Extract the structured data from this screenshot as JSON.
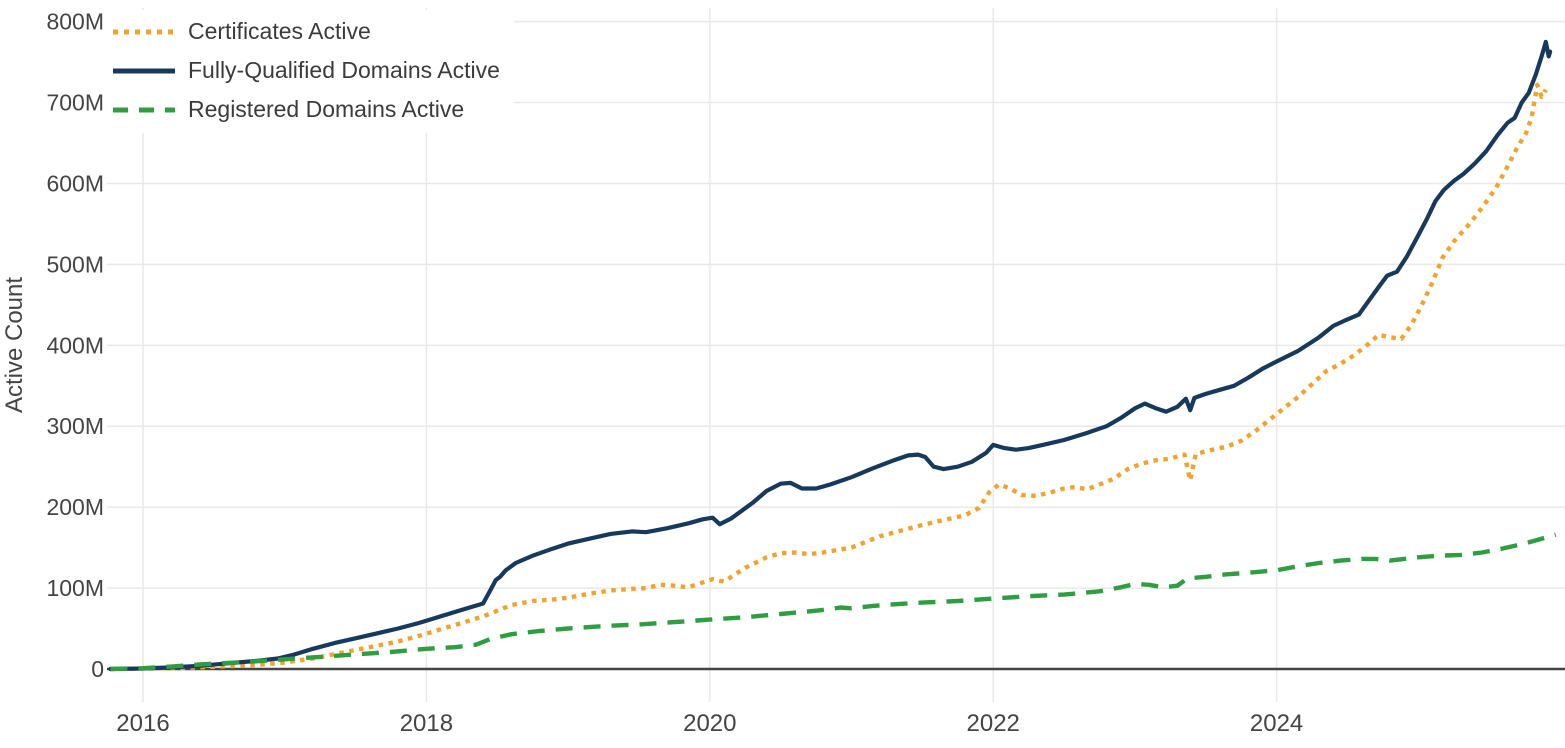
{
  "chart_data": {
    "type": "line",
    "title": "",
    "xlabel": "",
    "ylabel": "Active Count",
    "units": "millions",
    "xlim": [
      2015.77,
      2026.05
    ],
    "ylim": [
      0,
      800
    ],
    "grid": true,
    "legend_position": "top-left",
    "background_color": "#ffffff",
    "gridline_color": "#e9e9e9",
    "axis_line_color": "#444444",
    "tick_label_color": "#444444",
    "yticks": [
      {
        "v": 0,
        "label": "0"
      },
      {
        "v": 100,
        "label": "100M"
      },
      {
        "v": 200,
        "label": "200M"
      },
      {
        "v": 300,
        "label": "300M"
      },
      {
        "v": 400,
        "label": "400M"
      },
      {
        "v": 500,
        "label": "500M"
      },
      {
        "v": 600,
        "label": "600M"
      },
      {
        "v": 700,
        "label": "700M"
      },
      {
        "v": 800,
        "label": "800M"
      }
    ],
    "xticks": [
      {
        "v": 2016,
        "label": "2016"
      },
      {
        "v": 2018,
        "label": "2018"
      },
      {
        "v": 2020,
        "label": "2020"
      },
      {
        "v": 2022,
        "label": "2022"
      },
      {
        "v": 2024,
        "label": "2024"
      }
    ],
    "series": [
      {
        "name": "Certificates Active",
        "color": "#F0A42E",
        "line_style": "dot",
        "points": [
          [
            2015.77,
            0
          ],
          [
            2016.0,
            0.5
          ],
          [
            2016.2,
            1
          ],
          [
            2016.4,
            2
          ],
          [
            2016.6,
            3.5
          ],
          [
            2016.8,
            5
          ],
          [
            2017.0,
            8
          ],
          [
            2017.2,
            13
          ],
          [
            2017.4,
            20
          ],
          [
            2017.6,
            27
          ],
          [
            2017.8,
            34
          ],
          [
            2017.95,
            41
          ],
          [
            2018.1,
            49
          ],
          [
            2018.25,
            57
          ],
          [
            2018.4,
            65
          ],
          [
            2018.5,
            72
          ],
          [
            2018.6,
            79
          ],
          [
            2018.75,
            84
          ],
          [
            2018.9,
            86
          ],
          [
            2019.0,
            88
          ],
          [
            2019.15,
            93
          ],
          [
            2019.3,
            97
          ],
          [
            2019.45,
            99
          ],
          [
            2019.55,
            100
          ],
          [
            2019.65,
            104
          ],
          [
            2019.75,
            103
          ],
          [
            2019.85,
            101
          ],
          [
            2019.95,
            107
          ],
          [
            2020.02,
            111
          ],
          [
            2020.1,
            108
          ],
          [
            2020.25,
            125
          ],
          [
            2020.4,
            138
          ],
          [
            2020.5,
            143
          ],
          [
            2020.6,
            144
          ],
          [
            2020.7,
            142
          ],
          [
            2020.8,
            144
          ],
          [
            2020.9,
            147
          ],
          [
            2021.0,
            150
          ],
          [
            2021.1,
            157
          ],
          [
            2021.2,
            164
          ],
          [
            2021.35,
            171
          ],
          [
            2021.5,
            178
          ],
          [
            2021.65,
            184
          ],
          [
            2021.8,
            190
          ],
          [
            2021.9,
            199
          ],
          [
            2021.97,
            218
          ],
          [
            2022.04,
            228
          ],
          [
            2022.12,
            223
          ],
          [
            2022.2,
            215
          ],
          [
            2022.3,
            214
          ],
          [
            2022.4,
            218
          ],
          [
            2022.5,
            223
          ],
          [
            2022.58,
            225
          ],
          [
            2022.66,
            222
          ],
          [
            2022.75,
            228
          ],
          [
            2022.85,
            235
          ],
          [
            2022.95,
            247
          ],
          [
            2023.05,
            254
          ],
          [
            2023.15,
            258
          ],
          [
            2023.25,
            260
          ],
          [
            2023.35,
            265
          ],
          [
            2023.39,
            233
          ],
          [
            2023.43,
            266
          ],
          [
            2023.55,
            271
          ],
          [
            2023.65,
            275
          ],
          [
            2023.75,
            282
          ],
          [
            2023.85,
            294
          ],
          [
            2023.95,
            308
          ],
          [
            2024.05,
            322
          ],
          [
            2024.15,
            336
          ],
          [
            2024.25,
            352
          ],
          [
            2024.35,
            368
          ],
          [
            2024.45,
            377
          ],
          [
            2024.55,
            388
          ],
          [
            2024.65,
            402
          ],
          [
            2024.72,
            413
          ],
          [
            2024.8,
            410
          ],
          [
            2024.88,
            408
          ],
          [
            2024.95,
            425
          ],
          [
            2025.02,
            448
          ],
          [
            2025.1,
            478
          ],
          [
            2025.17,
            508
          ],
          [
            2025.25,
            528
          ],
          [
            2025.35,
            548
          ],
          [
            2025.45,
            570
          ],
          [
            2025.55,
            595
          ],
          [
            2025.62,
            618
          ],
          [
            2025.7,
            645
          ],
          [
            2025.76,
            662
          ],
          [
            2025.8,
            682
          ],
          [
            2025.84,
            722
          ],
          [
            2025.87,
            707
          ],
          [
            2025.9,
            716
          ]
        ]
      },
      {
        "name": "Fully-Qualified Domains Active",
        "color": "#16395D",
        "line_style": "solid",
        "points": [
          [
            2015.77,
            0
          ],
          [
            2016.0,
            0.6
          ],
          [
            2016.2,
            2
          ],
          [
            2016.4,
            4
          ],
          [
            2016.6,
            7
          ],
          [
            2016.8,
            10
          ],
          [
            2016.95,
            13
          ],
          [
            2017.05,
            17
          ],
          [
            2017.2,
            25
          ],
          [
            2017.35,
            32
          ],
          [
            2017.5,
            38
          ],
          [
            2017.65,
            44
          ],
          [
            2017.8,
            50
          ],
          [
            2017.95,
            57
          ],
          [
            2018.1,
            65
          ],
          [
            2018.25,
            73
          ],
          [
            2018.4,
            81
          ],
          [
            2018.45,
            97
          ],
          [
            2018.49,
            110
          ],
          [
            2018.52,
            114
          ],
          [
            2018.56,
            122
          ],
          [
            2018.63,
            131
          ],
          [
            2018.75,
            140
          ],
          [
            2018.88,
            148
          ],
          [
            2019.0,
            155
          ],
          [
            2019.15,
            161
          ],
          [
            2019.3,
            167
          ],
          [
            2019.45,
            170
          ],
          [
            2019.55,
            169
          ],
          [
            2019.7,
            174
          ],
          [
            2019.85,
            180
          ],
          [
            2019.95,
            185
          ],
          [
            2020.02,
            187
          ],
          [
            2020.07,
            179
          ],
          [
            2020.15,
            186
          ],
          [
            2020.3,
            205
          ],
          [
            2020.4,
            220
          ],
          [
            2020.5,
            229
          ],
          [
            2020.57,
            230
          ],
          [
            2020.65,
            223
          ],
          [
            2020.75,
            223
          ],
          [
            2020.85,
            228
          ],
          [
            2021.0,
            237
          ],
          [
            2021.15,
            248
          ],
          [
            2021.3,
            258
          ],
          [
            2021.4,
            264
          ],
          [
            2021.47,
            265
          ],
          [
            2021.52,
            262
          ],
          [
            2021.58,
            250
          ],
          [
            2021.65,
            247
          ],
          [
            2021.75,
            250
          ],
          [
            2021.85,
            256
          ],
          [
            2021.95,
            267
          ],
          [
            2022.0,
            277
          ],
          [
            2022.08,
            273
          ],
          [
            2022.16,
            271
          ],
          [
            2022.25,
            273
          ],
          [
            2022.35,
            277
          ],
          [
            2022.5,
            283
          ],
          [
            2022.65,
            291
          ],
          [
            2022.8,
            300
          ],
          [
            2022.9,
            310
          ],
          [
            2023.0,
            322
          ],
          [
            2023.07,
            328
          ],
          [
            2023.15,
            322
          ],
          [
            2023.22,
            318
          ],
          [
            2023.3,
            324
          ],
          [
            2023.36,
            334
          ],
          [
            2023.39,
            320
          ],
          [
            2023.42,
            335
          ],
          [
            2023.5,
            340
          ],
          [
            2023.6,
            345
          ],
          [
            2023.7,
            350
          ],
          [
            2023.8,
            360
          ],
          [
            2023.9,
            371
          ],
          [
            2024.0,
            380
          ],
          [
            2024.15,
            393
          ],
          [
            2024.3,
            410
          ],
          [
            2024.4,
            424
          ],
          [
            2024.5,
            432
          ],
          [
            2024.58,
            438
          ],
          [
            2024.65,
            455
          ],
          [
            2024.72,
            472
          ],
          [
            2024.78,
            486
          ],
          [
            2024.85,
            491
          ],
          [
            2024.92,
            510
          ],
          [
            2025.0,
            536
          ],
          [
            2025.06,
            556
          ],
          [
            2025.12,
            578
          ],
          [
            2025.18,
            592
          ],
          [
            2025.25,
            603
          ],
          [
            2025.32,
            612
          ],
          [
            2025.4,
            625
          ],
          [
            2025.48,
            640
          ],
          [
            2025.56,
            660
          ],
          [
            2025.63,
            675
          ],
          [
            2025.68,
            681
          ],
          [
            2025.73,
            700
          ],
          [
            2025.78,
            712
          ],
          [
            2025.83,
            735
          ],
          [
            2025.87,
            757
          ],
          [
            2025.9,
            775
          ],
          [
            2025.92,
            757
          ],
          [
            2025.93,
            763
          ]
        ]
      },
      {
        "name": "Registered Domains Active",
        "color": "#2E9E41",
        "line_style": "dash",
        "points": [
          [
            2015.77,
            0
          ],
          [
            2016.0,
            1
          ],
          [
            2016.2,
            3
          ],
          [
            2016.4,
            5.5
          ],
          [
            2016.6,
            7.5
          ],
          [
            2016.8,
            9.5
          ],
          [
            2017.0,
            12
          ],
          [
            2017.25,
            15
          ],
          [
            2017.5,
            18
          ],
          [
            2017.75,
            21
          ],
          [
            2018.0,
            25
          ],
          [
            2018.2,
            27
          ],
          [
            2018.35,
            30
          ],
          [
            2018.45,
            37
          ],
          [
            2018.6,
            43
          ],
          [
            2018.8,
            47
          ],
          [
            2019.0,
            50
          ],
          [
            2019.25,
            53
          ],
          [
            2019.5,
            55
          ],
          [
            2019.75,
            58
          ],
          [
            2020.0,
            61
          ],
          [
            2020.25,
            64
          ],
          [
            2020.5,
            68
          ],
          [
            2020.75,
            72
          ],
          [
            2020.85,
            74
          ],
          [
            2020.92,
            76
          ],
          [
            2021.0,
            75
          ],
          [
            2021.15,
            78
          ],
          [
            2021.3,
            80
          ],
          [
            2021.5,
            82
          ],
          [
            2021.75,
            84
          ],
          [
            2022.0,
            87
          ],
          [
            2022.25,
            90
          ],
          [
            2022.5,
            92
          ],
          [
            2022.75,
            96
          ],
          [
            2022.9,
            101
          ],
          [
            2023.0,
            105
          ],
          [
            2023.1,
            104
          ],
          [
            2023.2,
            101
          ],
          [
            2023.3,
            103
          ],
          [
            2023.37,
            112
          ],
          [
            2023.5,
            114
          ],
          [
            2023.65,
            117
          ],
          [
            2023.8,
            119
          ],
          [
            2024.0,
            122
          ],
          [
            2024.15,
            127
          ],
          [
            2024.3,
            131
          ],
          [
            2024.45,
            134
          ],
          [
            2024.6,
            136
          ],
          [
            2024.7,
            136
          ],
          [
            2024.8,
            134
          ],
          [
            2024.9,
            136
          ],
          [
            2025.0,
            138
          ],
          [
            2025.15,
            140
          ],
          [
            2025.3,
            141
          ],
          [
            2025.45,
            144
          ],
          [
            2025.6,
            149
          ],
          [
            2025.75,
            155
          ],
          [
            2025.87,
            161
          ],
          [
            2025.97,
            166
          ]
        ]
      }
    ]
  }
}
